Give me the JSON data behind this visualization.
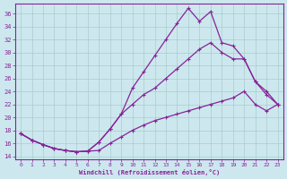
{
  "xlabel": "Windchill (Refroidissement éolien,°C)",
  "background_color": "#cce8ee",
  "grid_color": "#aacccc",
  "line_color": "#882299",
  "xlim": [
    -0.5,
    23.5
  ],
  "ylim": [
    13.5,
    37.5
  ],
  "xticks": [
    0,
    1,
    2,
    3,
    4,
    5,
    6,
    7,
    8,
    9,
    10,
    11,
    12,
    13,
    14,
    15,
    16,
    17,
    18,
    19,
    20,
    21,
    22,
    23
  ],
  "yticks": [
    14,
    16,
    18,
    20,
    22,
    24,
    26,
    28,
    30,
    32,
    34,
    36
  ],
  "curve1_x": [
    0,
    1,
    2,
    3,
    4,
    5,
    6,
    7,
    8,
    9,
    10,
    11,
    12,
    13,
    14,
    15,
    16,
    17,
    18,
    19,
    20,
    21,
    22,
    23
  ],
  "curve1_y": [
    17.5,
    16.5,
    15.8,
    15.2,
    14.9,
    14.7,
    14.8,
    16.2,
    18.2,
    20.5,
    24.5,
    27.0,
    29.5,
    32.0,
    34.5,
    36.8,
    34.8,
    36.3,
    31.5,
    31.0,
    29.0,
    25.5,
    24.0,
    22.0
  ],
  "curve2_x": [
    0,
    1,
    2,
    3,
    4,
    5,
    6,
    7,
    8,
    9,
    10,
    11,
    12,
    13,
    14,
    15,
    16,
    17,
    18,
    19,
    20,
    21,
    22,
    23
  ],
  "curve2_y": [
    17.5,
    16.5,
    15.8,
    15.2,
    14.9,
    14.7,
    14.8,
    16.2,
    18.2,
    20.5,
    22.0,
    23.5,
    24.5,
    26.0,
    27.5,
    29.0,
    30.5,
    31.5,
    30.0,
    29.0,
    29.0,
    25.5,
    23.5,
    22.0
  ],
  "curve3_x": [
    0,
    1,
    2,
    3,
    4,
    5,
    6,
    7,
    8,
    9,
    10,
    11,
    12,
    13,
    14,
    15,
    16,
    17,
    18,
    19,
    20,
    21,
    22,
    23
  ],
  "curve3_y": [
    17.5,
    16.5,
    15.8,
    15.2,
    14.9,
    14.7,
    14.8,
    14.9,
    16.0,
    17.0,
    18.0,
    18.8,
    19.5,
    20.0,
    20.5,
    21.0,
    21.5,
    22.0,
    22.5,
    23.0,
    24.0,
    22.0,
    21.0,
    22.0
  ]
}
